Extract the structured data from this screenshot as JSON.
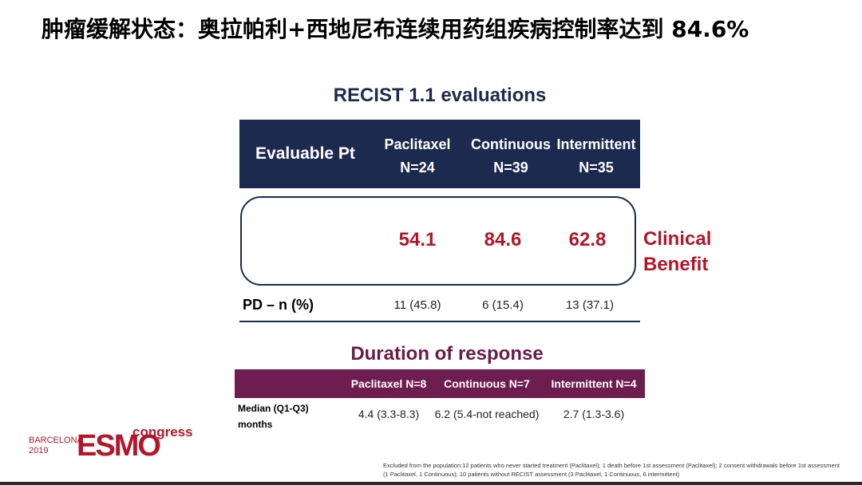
{
  "slide_title": "肿瘤缓解状态：奥拉帕利+西地尼布连续用药组疾病控制率达到 84.6%",
  "recist": {
    "title": "RECIST 1.1 evaluations",
    "header_first": "Evaluable Pt",
    "columns": [
      {
        "name": "Paclitaxel",
        "n": "N=24"
      },
      {
        "name": "Continuous",
        "n": "N=39"
      },
      {
        "name": "Intermittent",
        "n": "N=35"
      }
    ],
    "clinical_benefit_values": [
      "54.1",
      "84.6",
      "62.8"
    ],
    "clinical_benefit_label": "Clinical Benefit",
    "pd_label": "PD – n (%)",
    "pd_values": [
      "11 (45.8)",
      "6 (15.4)",
      "13 (37.1)"
    ]
  },
  "duration": {
    "title": "Duration of response",
    "columns": [
      "Paclitaxel N=8",
      "Continuous N=7",
      "Intermittent N=4"
    ],
    "row_label_line1": "Median (Q1-Q3)",
    "row_label_line2": "months",
    "values": [
      "4.4 (3.3-8.3)",
      "6.2 (5.4-not reached)",
      "2.7 (1.3-3.6)"
    ]
  },
  "logo": {
    "city": "BARCELONA",
    "year": "2019",
    "brand": "ESMO",
    "suffix": "congress",
    "color": "#b3162a"
  },
  "footnote": "Excluded from the population:12 patients who never started treatment (Paclitaxel); 1 death before 1st assessment (Paclitaxel); 2 consent withdrawals before 1st assessment (1 Paclitaxel, 1 Continuous); 10 patients without RECIST assessment (3 Paclitaxel, 1 Continuous, 6 intermittent)",
  "colors": {
    "navy": "#1c2a50",
    "plum": "#6d1d4f",
    "red": "#b3162a"
  }
}
